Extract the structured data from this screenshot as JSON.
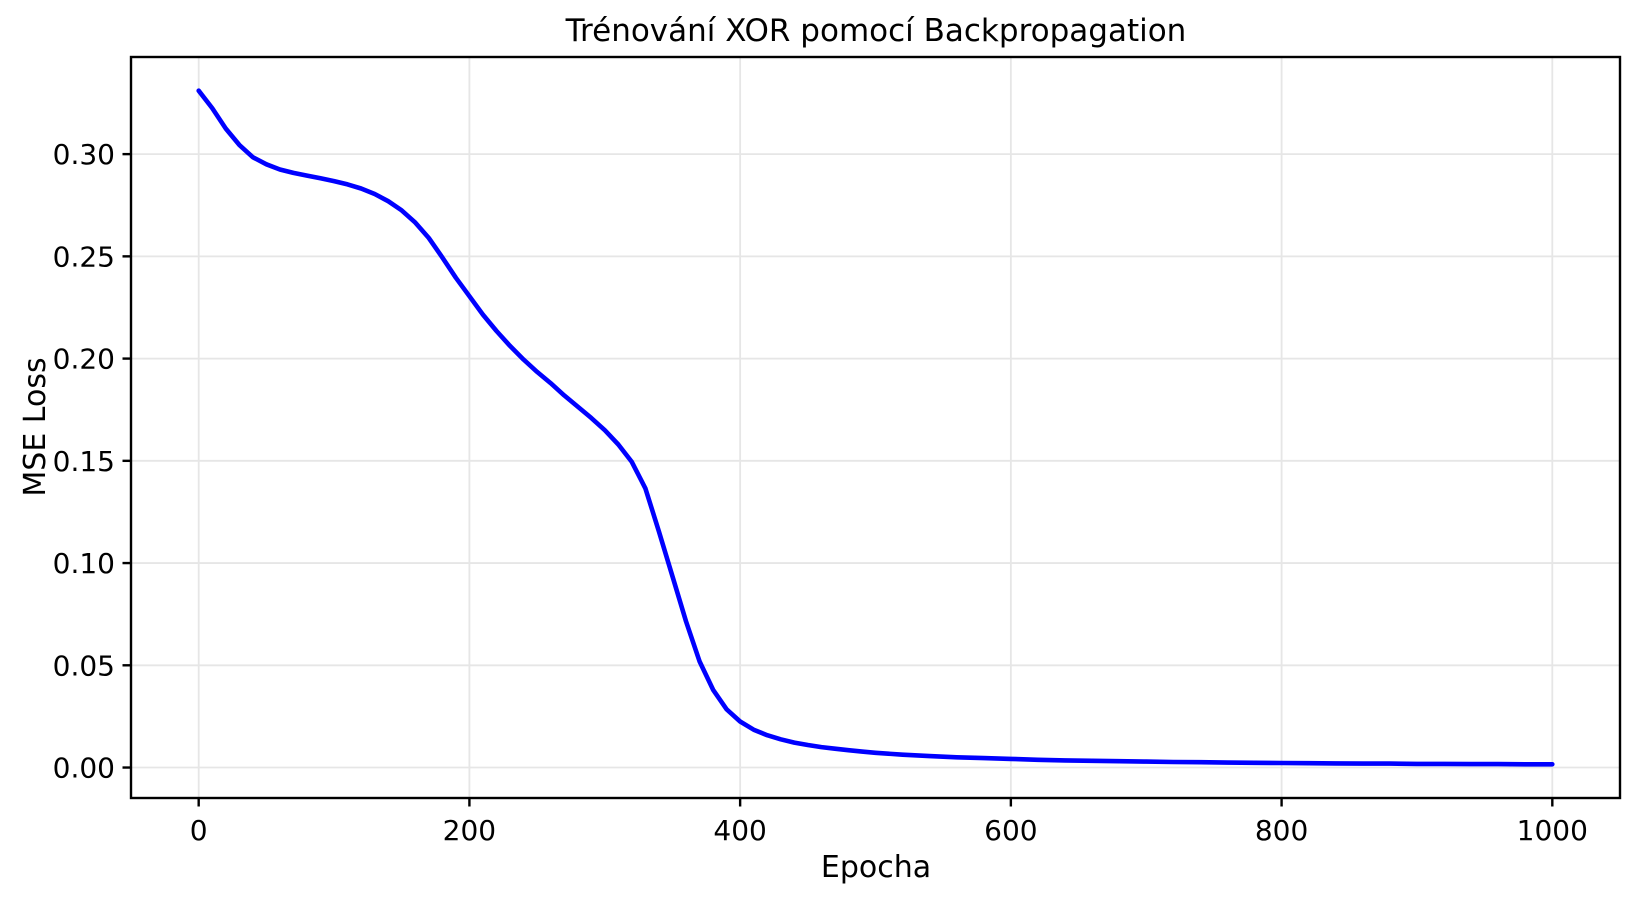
{
  "chart_data": {
    "type": "line",
    "title": "Trénování XOR pomocí Backpropagation",
    "xlabel": "Epocha",
    "ylabel": "MSE Loss",
    "xlim": [
      -50,
      1050
    ],
    "ylim": [
      -0.0149,
      0.3475
    ],
    "xticks": [
      0,
      200,
      400,
      600,
      800,
      1000
    ],
    "xtick_labels": [
      "0",
      "200",
      "400",
      "600",
      "800",
      "1000"
    ],
    "yticks": [
      0.0,
      0.05,
      0.1,
      0.15,
      0.2,
      0.25,
      0.3
    ],
    "ytick_labels": [
      "0.00",
      "0.05",
      "0.10",
      "0.15",
      "0.20",
      "0.25",
      "0.30"
    ],
    "grid": true,
    "grid_color": "#e6e6e6",
    "background_color": "#ffffff",
    "spine_color": "#000000",
    "line_color": "#0000ff",
    "line_width": 4.6,
    "legend": "none",
    "series": [
      {
        "name": "MSE Loss",
        "points": [
          [
            0,
            0.331
          ],
          [
            10,
            0.3225
          ],
          [
            20,
            0.3125
          ],
          [
            30,
            0.3045
          ],
          [
            40,
            0.2985
          ],
          [
            50,
            0.295
          ],
          [
            60,
            0.2925
          ],
          [
            70,
            0.2908
          ],
          [
            80,
            0.2895
          ],
          [
            90,
            0.2882
          ],
          [
            100,
            0.2868
          ],
          [
            110,
            0.2852
          ],
          [
            120,
            0.2832
          ],
          [
            130,
            0.2805
          ],
          [
            140,
            0.277
          ],
          [
            150,
            0.2725
          ],
          [
            160,
            0.2665
          ],
          [
            170,
            0.259
          ],
          [
            180,
            0.2495
          ],
          [
            190,
            0.2395
          ],
          [
            200,
            0.2305
          ],
          [
            210,
            0.2215
          ],
          [
            220,
            0.2135
          ],
          [
            230,
            0.2062
          ],
          [
            240,
            0.1995
          ],
          [
            250,
            0.1935
          ],
          [
            260,
            0.188
          ],
          [
            270,
            0.182
          ],
          [
            280,
            0.1765
          ],
          [
            290,
            0.171
          ],
          [
            300,
            0.165
          ],
          [
            310,
            0.158
          ],
          [
            320,
            0.1495
          ],
          [
            330,
            0.1365
          ],
          [
            340,
            0.1155
          ],
          [
            350,
            0.0935
          ],
          [
            360,
            0.0715
          ],
          [
            370,
            0.052
          ],
          [
            380,
            0.038
          ],
          [
            390,
            0.0285
          ],
          [
            400,
            0.0225
          ],
          [
            410,
            0.0185
          ],
          [
            420,
            0.0158
          ],
          [
            430,
            0.0138
          ],
          [
            440,
            0.0122
          ],
          [
            450,
            0.011
          ],
          [
            460,
            0.01
          ],
          [
            470,
            0.0092
          ],
          [
            480,
            0.0085
          ],
          [
            490,
            0.0078
          ],
          [
            500,
            0.0072
          ],
          [
            520,
            0.0063
          ],
          [
            540,
            0.0056
          ],
          [
            560,
            0.005
          ],
          [
            580,
            0.0046
          ],
          [
            600,
            0.0042
          ],
          [
            620,
            0.0038
          ],
          [
            640,
            0.0035
          ],
          [
            660,
            0.0033
          ],
          [
            680,
            0.0031
          ],
          [
            700,
            0.0029
          ],
          [
            720,
            0.0027
          ],
          [
            740,
            0.0026
          ],
          [
            760,
            0.0024
          ],
          [
            780,
            0.0023
          ],
          [
            800,
            0.0022
          ],
          [
            820,
            0.0021
          ],
          [
            840,
            0.002
          ],
          [
            860,
            0.0019
          ],
          [
            880,
            0.0019
          ],
          [
            900,
            0.0018
          ],
          [
            920,
            0.0018
          ],
          [
            940,
            0.0017
          ],
          [
            960,
            0.0017
          ],
          [
            980,
            0.0016
          ],
          [
            1000,
            0.0016
          ]
        ]
      }
    ]
  }
}
